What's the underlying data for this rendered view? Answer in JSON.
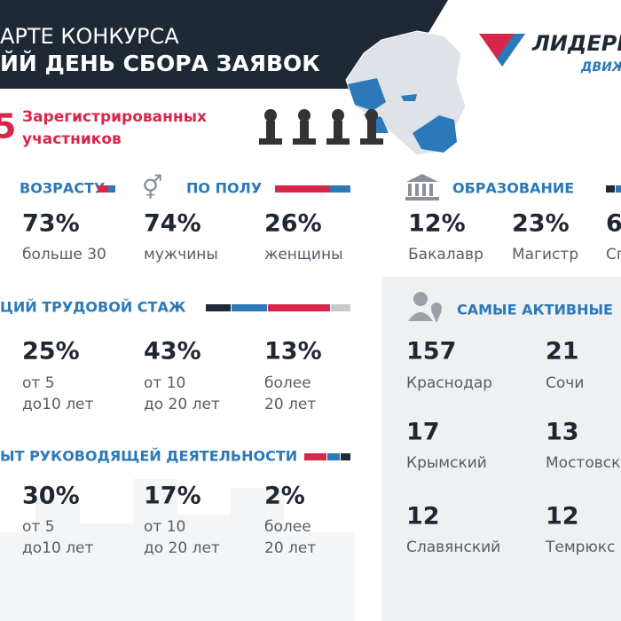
{
  "header": {
    "title_line1": "АРТЕ КОНКУРСА",
    "title_line2": "ЙЙ ДЕНЬ СБОРА ЗАЯВОК"
  },
  "logo": {
    "name": "ЛИДЕРЫ",
    "subtitle": "ДВИЖ"
  },
  "registered": {
    "value": "5",
    "label_line1": "Зарегистрированных",
    "label_line2": "участников"
  },
  "age": {
    "title": "ВОЗРАСТУ",
    "items": [
      {
        "value": "73%",
        "label": "больше 30"
      }
    ]
  },
  "gender": {
    "title": "ПО ПОЛУ",
    "items": [
      {
        "value": "74%",
        "label": "мужчины"
      },
      {
        "value": "26%",
        "label": "женщины"
      }
    ]
  },
  "education": {
    "title": "ОБРАЗОВАНИЕ",
    "items": [
      {
        "value": "12%",
        "label": "Бакалавр"
      },
      {
        "value": "23%",
        "label": "Магистр"
      },
      {
        "value": "6",
        "label": "Сп"
      }
    ]
  },
  "experience": {
    "title": "ЦИЙ ТРУДОВОЙ СТАЖ",
    "items": [
      {
        "value": "25%",
        "line1": "от 5",
        "line2": "до10 лет"
      },
      {
        "value": "43%",
        "line1": "от 10",
        "line2": "до 20 лет"
      },
      {
        "value": "13%",
        "line1": "более",
        "line2": "20 лет"
      }
    ]
  },
  "management": {
    "title": "ЫТ РУКОВОДЯЩЕЙ ДЕЯТЕЛЬНОСТИ",
    "items": [
      {
        "value": "30%",
        "line1": "от 5",
        "line2": "до10 лет"
      },
      {
        "value": "17%",
        "line1": "от 10",
        "line2": "до 20 лет"
      },
      {
        "value": "2%",
        "line1": "более",
        "line2": "20 лет"
      }
    ]
  },
  "active": {
    "title": "САМЫЕ АКТИВНЫЕ",
    "items": [
      {
        "value": "157",
        "label": "Краснодар"
      },
      {
        "value": "21",
        "label": "Сочи"
      },
      {
        "value": "17",
        "label": "Крымский"
      },
      {
        "value": "13",
        "label": "Мостовск"
      },
      {
        "value": "12",
        "label": "Славянский"
      },
      {
        "value": "12",
        "label": "Темрюкс"
      }
    ]
  }
}
